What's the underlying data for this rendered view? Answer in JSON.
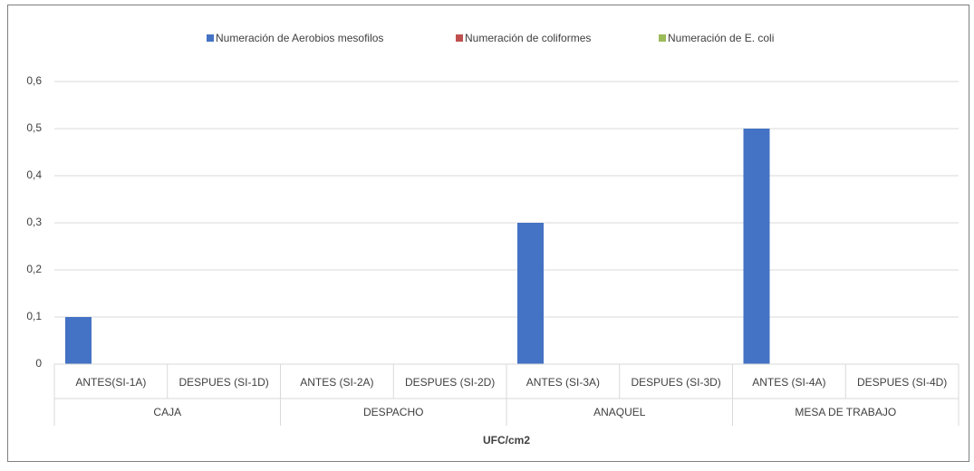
{
  "chart_data": {
    "type": "bar",
    "x_label": "UFC/cm2",
    "categories": [
      "ANTES(SI-1A)",
      "DESPUES (SI-1D)",
      "ANTES (SI-2A)",
      "DESPUES (SI-2D)",
      "ANTES (SI-3A)",
      "DESPUES (SI-3D)",
      "ANTES (SI-4A)",
      "DESPUES (SI-4D)"
    ],
    "category_groups": [
      "CAJA",
      "DESPACHO",
      "ANAQUEL",
      "MESA DE TRABAJO"
    ],
    "series": [
      {
        "name": "Numeración de Aerobios mesofilos",
        "color": "#4472c4",
        "values": [
          0.1,
          0,
          0,
          0,
          0.3,
          0,
          0.5,
          0
        ]
      },
      {
        "name": "Numeración de  coliformes",
        "color": "#c0504d",
        "values": [
          0,
          0,
          0,
          0,
          0,
          0,
          0,
          0
        ]
      },
      {
        "name": "Numeración de E. coli",
        "color": "#9bbb59",
        "values": [
          0,
          0,
          0,
          0,
          0,
          0,
          0,
          0
        ]
      }
    ],
    "ylim": [
      0,
      0.6
    ],
    "yticks": [
      0,
      {
        "value": 0.1,
        "label": "0,1"
      },
      {
        "value": 0.2,
        "label": "0,2"
      },
      {
        "value": 0.3,
        "label": "0,3"
      },
      {
        "value": 0.4,
        "label": "0,4"
      },
      {
        "value": 0.5,
        "label": "0,5"
      },
      {
        "value": 0.6,
        "label": "0,6"
      }
    ],
    "grid": true,
    "legend": "top"
  }
}
